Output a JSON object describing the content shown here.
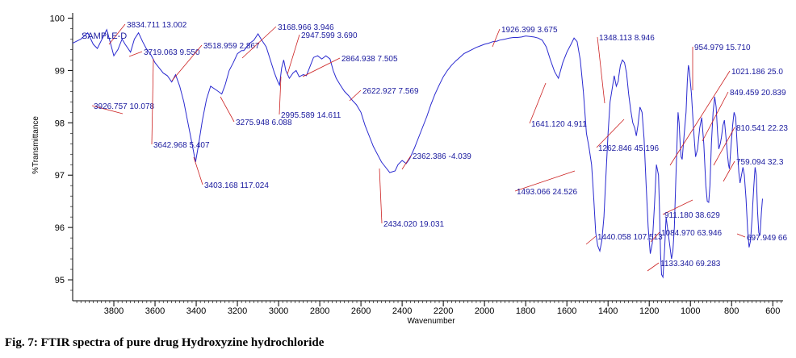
{
  "caption": "Fig. 7: FTIR spectra of pure drug Hydroxyzine hydrochloride",
  "chart_data": {
    "type": "line",
    "xlabel": "Wavenumber",
    "ylabel": "%Transmittance",
    "xlim": [
      4000,
      550
    ],
    "ylim": [
      94.6,
      100.1
    ],
    "x_ticks": [
      3800,
      3600,
      3400,
      3200,
      3000,
      2800,
      2600,
      2400,
      2200,
      2000,
      1800,
      1600,
      1400,
      1200,
      1000,
      800,
      600
    ],
    "y_ticks": [
      95,
      96,
      97,
      98,
      99,
      100
    ],
    "y_tick_labels": [
      "95",
      "96",
      "97",
      "98",
      "99",
      "100"
    ],
    "series": [
      {
        "name": "SAMPLE-D",
        "color": "#2a2ad0",
        "points": [
          [
            4000,
            99.52
          ],
          [
            3960,
            99.6
          ],
          [
            3926.757,
            99.72
          ],
          [
            3900,
            99.5
          ],
          [
            3880,
            99.42
          ],
          [
            3860,
            99.58
          ],
          [
            3834.711,
            99.78
          ],
          [
            3815,
            99.5
          ],
          [
            3800,
            99.28
          ],
          [
            3780,
            99.4
          ],
          [
            3760,
            99.6
          ],
          [
            3745,
            99.5
          ],
          [
            3719.063,
            99.35
          ],
          [
            3700,
            99.6
          ],
          [
            3680,
            99.72
          ],
          [
            3660,
            99.55
          ],
          [
            3642.968,
            99.42
          ],
          [
            3620,
            99.3
          ],
          [
            3600,
            99.15
          ],
          [
            3580,
            99.05
          ],
          [
            3560,
            98.95
          ],
          [
            3540,
            98.9
          ],
          [
            3518.959,
            98.78
          ],
          [
            3500,
            98.92
          ],
          [
            3480,
            98.7
          ],
          [
            3460,
            98.4
          ],
          [
            3440,
            98.0
          ],
          [
            3420,
            97.6
          ],
          [
            3403.168,
            97.25
          ],
          [
            3390,
            97.55
          ],
          [
            3370,
            98.05
          ],
          [
            3350,
            98.45
          ],
          [
            3330,
            98.7
          ],
          [
            3300,
            98.62
          ],
          [
            3275.948,
            98.55
          ],
          [
            3260,
            98.72
          ],
          [
            3240,
            99.0
          ],
          [
            3220,
            99.15
          ],
          [
            3200,
            99.32
          ],
          [
            3180,
            99.38
          ],
          [
            3168.966,
            99.38
          ],
          [
            3140,
            99.52
          ],
          [
            3120,
            99.58
          ],
          [
            3100,
            99.7
          ],
          [
            3085,
            99.6
          ],
          [
            3060,
            99.45
          ],
          [
            3040,
            99.2
          ],
          [
            3020,
            98.95
          ],
          [
            3005,
            98.8
          ],
          [
            2995.589,
            98.72
          ],
          [
            2985,
            99.05
          ],
          [
            2975,
            99.2
          ],
          [
            2965,
            99.0
          ],
          [
            2947.599,
            98.85
          ],
          [
            2930,
            98.95
          ],
          [
            2915,
            99.0
          ],
          [
            2900,
            98.88
          ],
          [
            2880,
            98.92
          ],
          [
            2864.938,
            98.9
          ],
          [
            2845,
            99.1
          ],
          [
            2830,
            99.25
          ],
          [
            2810,
            99.28
          ],
          [
            2790,
            99.22
          ],
          [
            2770,
            99.28
          ],
          [
            2750,
            99.22
          ],
          [
            2735,
            99.0
          ],
          [
            2720,
            98.85
          ],
          [
            2700,
            98.72
          ],
          [
            2680,
            98.6
          ],
          [
            2660,
            98.52
          ],
          [
            2640,
            98.42
          ],
          [
            2622.927,
            98.35
          ],
          [
            2600,
            98.2
          ],
          [
            2580,
            97.95
          ],
          [
            2560,
            97.75
          ],
          [
            2540,
            97.55
          ],
          [
            2520,
            97.4
          ],
          [
            2500,
            97.25
          ],
          [
            2480,
            97.15
          ],
          [
            2460,
            97.05
          ],
          [
            2434.02,
            97.08
          ],
          [
            2420,
            97.2
          ],
          [
            2400,
            97.28
          ],
          [
            2380,
            97.22
          ],
          [
            2362.386,
            97.32
          ],
          [
            2340,
            97.52
          ],
          [
            2320,
            97.72
          ],
          [
            2300,
            97.92
          ],
          [
            2280,
            98.12
          ],
          [
            2260,
            98.35
          ],
          [
            2240,
            98.55
          ],
          [
            2220,
            98.72
          ],
          [
            2200,
            98.88
          ],
          [
            2180,
            99.0
          ],
          [
            2160,
            99.1
          ],
          [
            2140,
            99.18
          ],
          [
            2120,
            99.25
          ],
          [
            2100,
            99.32
          ],
          [
            2080,
            99.36
          ],
          [
            2060,
            99.4
          ],
          [
            2040,
            99.44
          ],
          [
            2020,
            99.47
          ],
          [
            2000,
            99.5
          ],
          [
            1980,
            99.52
          ],
          [
            1960,
            99.55
          ],
          [
            1940,
            99.56
          ],
          [
            1926.399,
            99.58
          ],
          [
            1900,
            99.6
          ],
          [
            1880,
            99.62
          ],
          [
            1860,
            99.63
          ],
          [
            1840,
            99.63
          ],
          [
            1820,
            99.64
          ],
          [
            1800,
            99.66
          ],
          [
            1780,
            99.65
          ],
          [
            1760,
            99.64
          ],
          [
            1740,
            99.62
          ],
          [
            1720,
            99.58
          ],
          [
            1700,
            99.45
          ],
          [
            1680,
            99.2
          ],
          [
            1660,
            98.98
          ],
          [
            1641.12,
            98.85
          ],
          [
            1620,
            99.15
          ],
          [
            1600,
            99.35
          ],
          [
            1580,
            99.5
          ],
          [
            1565,
            99.62
          ],
          [
            1550,
            99.55
          ],
          [
            1535,
            99.2
          ],
          [
            1520,
            98.6
          ],
          [
            1505,
            97.8
          ],
          [
            1493.066,
            97.55
          ],
          [
            1480,
            97.2
          ],
          [
            1470,
            96.6
          ],
          [
            1460,
            95.9
          ],
          [
            1450,
            95.65
          ],
          [
            1440.058,
            95.55
          ],
          [
            1430,
            95.75
          ],
          [
            1420,
            96.2
          ],
          [
            1410,
            97.0
          ],
          [
            1400,
            97.8
          ],
          [
            1390,
            98.4
          ],
          [
            1380,
            98.65
          ],
          [
            1370,
            98.9
          ],
          [
            1360,
            98.7
          ],
          [
            1350,
            98.8
          ],
          [
            1348.113,
            98.88
          ],
          [
            1340,
            99.1
          ],
          [
            1330,
            99.2
          ],
          [
            1320,
            99.15
          ],
          [
            1310,
            98.95
          ],
          [
            1300,
            98.55
          ],
          [
            1290,
            98.25
          ],
          [
            1280,
            98.0
          ],
          [
            1270,
            97.9
          ],
          [
            1262.846,
            97.75
          ],
          [
            1255,
            97.95
          ],
          [
            1245,
            98.3
          ],
          [
            1235,
            98.2
          ],
          [
            1225,
            97.7
          ],
          [
            1215,
            96.8
          ],
          [
            1205,
            96.0
          ],
          [
            1195,
            95.5
          ],
          [
            1185,
            95.7
          ],
          [
            1175,
            96.4
          ],
          [
            1165,
            97.2
          ],
          [
            1155,
            97.0
          ],
          [
            1150,
            96.3
          ],
          [
            1145,
            95.5
          ],
          [
            1140,
            95.1
          ],
          [
            1133.34,
            95.05
          ],
          [
            1125,
            95.6
          ],
          [
            1118,
            96.2
          ],
          [
            1110,
            95.95
          ],
          [
            1100,
            95.65
          ],
          [
            1092,
            95.4
          ],
          [
            1084.97,
            95.55
          ],
          [
            1078,
            96.0
          ],
          [
            1072,
            96.8
          ],
          [
            1065,
            97.6
          ],
          [
            1060,
            98.2
          ],
          [
            1055,
            98.0
          ],
          [
            1050,
            97.6
          ],
          [
            1045,
            97.35
          ],
          [
            1040,
            97.3
          ],
          [
            1030,
            97.8
          ],
          [
            1021.186,
            98.2
          ],
          [
            1015,
            98.8
          ],
          [
            1010,
            99.1
          ],
          [
            1005,
            99.0
          ],
          [
            995,
            98.55
          ],
          [
            985,
            97.9
          ],
          [
            975,
            97.35
          ],
          [
            965,
            97.5
          ],
          [
            954.979,
            97.9
          ],
          [
            945,
            98.1
          ],
          [
            935,
            97.6
          ],
          [
            925,
            96.8
          ],
          [
            918,
            96.5
          ],
          [
            911.18,
            96.48
          ],
          [
            905,
            96.8
          ],
          [
            898,
            97.6
          ],
          [
            890,
            98.2
          ],
          [
            882,
            98.5
          ],
          [
            875,
            98.3
          ],
          [
            868,
            97.8
          ],
          [
            862,
            97.5
          ],
          [
            855,
            97.6
          ],
          [
            849.459,
            97.72
          ],
          [
            842,
            97.95
          ],
          [
            835,
            98.05
          ],
          [
            828,
            97.75
          ],
          [
            820,
            97.4
          ],
          [
            815,
            97.2
          ],
          [
            810.541,
            97.12
          ],
          [
            803,
            97.55
          ],
          [
            795,
            97.95
          ],
          [
            788,
            98.2
          ],
          [
            780,
            98.1
          ],
          [
            772,
            97.5
          ],
          [
            765,
            97.05
          ],
          [
            759.094,
            96.85
          ],
          [
            752,
            97.0
          ],
          [
            745,
            97.15
          ],
          [
            738,
            97.0
          ],
          [
            730,
            96.55
          ],
          [
            722,
            95.95
          ],
          [
            715,
            95.62
          ],
          [
            708,
            95.75
          ],
          [
            700,
            96.2
          ],
          [
            697.949,
            96.4
          ],
          [
            692,
            96.8
          ],
          [
            686,
            97.15
          ],
          [
            680,
            97.0
          ],
          [
            674,
            96.3
          ],
          [
            668,
            95.9
          ],
          [
            662,
            95.85
          ],
          [
            655,
            96.3
          ],
          [
            650,
            96.55
          ]
        ]
      }
    ],
    "annotations": [
      "3926.757  10.078",
      "3834.711  13.002",
      "3719.063  9.550",
      "3642.968  5.407",
      "3518.959  2.867",
      "3403.168  117.024",
      "3275.948  6.088",
      "3168.966  3.946",
      "2995.589  14.611",
      "2947.599  3.690",
      "2864.938  7.505",
      "2622.927  7.569",
      "2434.020  19.031",
      "2362.386  -4.039",
      "1926.399  3.675",
      "1641.120  4.911",
      "1493.066  24.526",
      "1440.058  107.513",
      "1348.113  8.946",
      "1262.846  45.196",
      "1133.340  69.283",
      "1084.970  63.946",
      "1021.186  25.0",
      "954.979  15.710",
      "911.180  38.629",
      "849.459  20.839",
      "810.541  22.23",
      "759.094  32.3",
      "697.949  66"
    ]
  }
}
